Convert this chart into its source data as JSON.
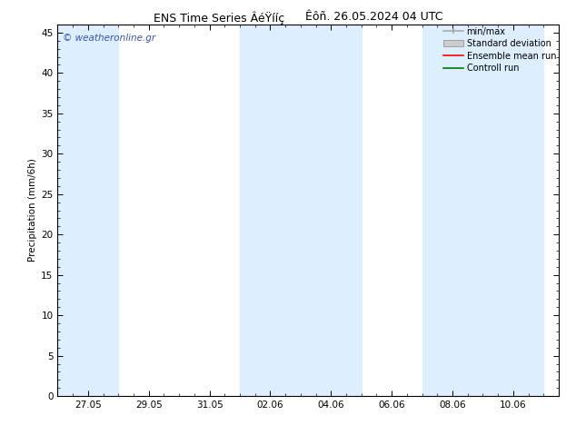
{
  "title_left": "ENS Time Series ÂéŸííç",
  "title_right": "Êôñ. 26.05.2024 04 UTC",
  "ylabel": "Precipitation (mm/6h)",
  "ylim": [
    0,
    46
  ],
  "yticks": [
    0,
    5,
    10,
    15,
    20,
    25,
    30,
    35,
    40,
    45
  ],
  "xtick_labels": [
    "27.05",
    "29.05",
    "31.05",
    "02.06",
    "04.06",
    "06.06",
    "08.06",
    "10.06"
  ],
  "background_color": "#ffffff",
  "plot_bg_color": "#ddeeff",
  "watermark": "© weatheronline.gr",
  "watermark_color": "#3355bb",
  "legend_items": [
    "min/max",
    "Standard deviation",
    "Ensemble mean run",
    "Controll run"
  ],
  "minmax_color": "#aaaaaa",
  "std_color": "#cccccc",
  "ensemble_color": "#ff0000",
  "control_color": "#007700",
  "shaded_indices": [
    0,
    3,
    4,
    6,
    7
  ],
  "n_ticks": 8,
  "title_fontsize": 9,
  "label_fontsize": 7.5,
  "tick_fontsize": 7.5,
  "watermark_fontsize": 7.5,
  "legend_fontsize": 7
}
